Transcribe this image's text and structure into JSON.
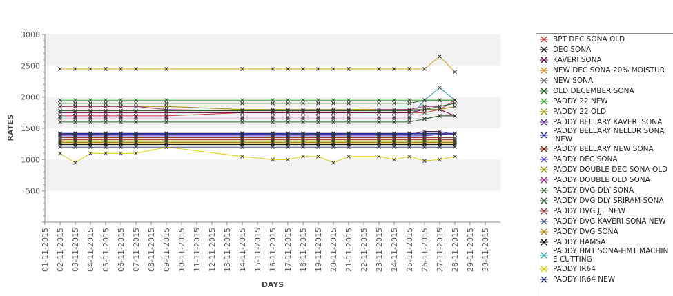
{
  "chart_data": {
    "type": "line",
    "title": "",
    "xlabel": "DAYS",
    "ylabel": "RATES",
    "ylim": [
      0,
      3000
    ],
    "y_ticks": [
      "500",
      "1000",
      "1500",
      "2000",
      "2500",
      "3000"
    ],
    "x_ticks": [
      "01-11-2015",
      "02-11-2015",
      "03-11-2015",
      "04-11-2015",
      "05-11-2015",
      "06-11-2015",
      "07-11-2015",
      "08-11-2015",
      "09-11-2015",
      "10-11-2015",
      "11-11-2015",
      "12-11-2015",
      "13-11-2015",
      "14-11-2015",
      "15-11-2015",
      "16-11-2015",
      "17-11-2015",
      "18-11-2015",
      "19-11-2015",
      "20-11-2015",
      "21-11-2015",
      "22-11-2015",
      "23-11-2015",
      "24-11-2015",
      "25-11-2015",
      "26-11-2015",
      "27-11-2015",
      "28-11-2015",
      "29-11-2015",
      "30-11-2015"
    ],
    "x_days": [
      2,
      3,
      4,
      5,
      6,
      7,
      9,
      14,
      16,
      17,
      18,
      19,
      20,
      21,
      23,
      24,
      25,
      26,
      27,
      28
    ],
    "grid": "alternating horizontal bands",
    "legend_position": "right",
    "series": [
      {
        "name": "BPT DEC SONA OLD",
        "color": "#cc3333",
        "values": [
          1700,
          1700,
          1700,
          1700,
          1700,
          1700,
          1700,
          1750,
          1750,
          1750,
          1750,
          1750,
          1750,
          1750,
          1750,
          1750,
          1750,
          1750,
          1800,
          1950
        ]
      },
      {
        "name": "DEC SONA",
        "color": "#111111",
        "values": [
          1650,
          1650,
          1650,
          1650,
          1650,
          1650,
          1650,
          1650,
          1650,
          1650,
          1650,
          1650,
          1650,
          1650,
          1650,
          1650,
          1650,
          1650,
          1700,
          1700
        ]
      },
      {
        "name": "KAVERI SONA",
        "color": "#660044",
        "values": [
          1750,
          1750,
          1750,
          1750,
          1750,
          1750,
          1750,
          1750,
          1750,
          1750,
          1750,
          1750,
          1750,
          1750,
          1750,
          1750,
          1750,
          1800,
          1800,
          1700
        ]
      },
      {
        "name": "NEW DEC SONA 20% MOISTUR",
        "color": "#cc7700",
        "values": [
          1300,
          1300,
          1300,
          1300,
          1300,
          1300,
          1300,
          1300,
          1300,
          1300,
          1300,
          1300,
          1300,
          1300,
          1300,
          1300,
          1300,
          1300,
          1300,
          1300
        ]
      },
      {
        "name": "NEW SONA",
        "color": "#666666",
        "values": [
          1250,
          1250,
          1250,
          1250,
          1250,
          1250,
          1250,
          1250,
          1250,
          1250,
          1250,
          1250,
          1250,
          1250,
          1250,
          1250,
          1250,
          1250,
          1250,
          1250
        ]
      },
      {
        "name": "OLD DECEMBER SONA",
        "color": "#226622",
        "values": [
          1900,
          1900,
          1900,
          1900,
          1900,
          1900,
          1900,
          1900,
          1900,
          1900,
          1900,
          1900,
          1900,
          1900,
          1900,
          1900,
          1900,
          1950,
          1950,
          1950
        ]
      },
      {
        "name": "PADDY 22 NEW",
        "color": "#33aa33",
        "values": [
          1950,
          1950,
          1950,
          1950,
          1950,
          1950,
          1950,
          1950,
          1950,
          1950,
          1950,
          1950,
          1950,
          1950,
          1950,
          1950,
          1950,
          1950,
          1950,
          1950
        ]
      },
      {
        "name": "PADDY 22 OLD",
        "color": "#998800",
        "values": [
          1850,
          1850,
          1850,
          1850,
          1850,
          1850,
          1850,
          1800,
          1800,
          1800,
          1800,
          1800,
          1800,
          1800,
          1800,
          1800,
          1800,
          1800,
          1800,
          1850
        ]
      },
      {
        "name": "PADDY BELLARY KAVERI SONA",
        "color": "#552288",
        "values": [
          1400,
          1400,
          1400,
          1400,
          1400,
          1400,
          1400,
          1400,
          1400,
          1400,
          1400,
          1400,
          1400,
          1400,
          1400,
          1400,
          1400,
          1450,
          1450,
          1400
        ]
      },
      {
        "name": "PADDY BELLARY NELLUR SONA\n NEW",
        "color": "#222299",
        "values": [
          1420,
          1420,
          1420,
          1420,
          1420,
          1420,
          1420,
          1420,
          1420,
          1420,
          1420,
          1420,
          1420,
          1420,
          1420,
          1420,
          1420,
          1420,
          1420,
          1420
        ]
      },
      {
        "name": "PADDY BELLARY NEW SONA",
        "color": "#882200",
        "values": [
          1350,
          1350,
          1350,
          1350,
          1350,
          1350,
          1350,
          1350,
          1350,
          1350,
          1350,
          1350,
          1350,
          1350,
          1350,
          1350,
          1350,
          1350,
          1350,
          1350
        ]
      },
      {
        "name": "PADDY DEC SONA",
        "color": "#5533cc",
        "values": [
          1380,
          1380,
          1380,
          1380,
          1380,
          1380,
          1380,
          1380,
          1380,
          1380,
          1380,
          1380,
          1380,
          1380,
          1380,
          1380,
          1380,
          1380,
          1400,
          1400
        ]
      },
      {
        "name": "PADDY DOUBLE DEC SONA OLD",
        "color": "#888800",
        "values": [
          1280,
          1280,
          1280,
          1280,
          1280,
          1280,
          1280,
          1280,
          1280,
          1280,
          1280,
          1280,
          1280,
          1280,
          1280,
          1280,
          1280,
          1280,
          1280,
          1280
        ]
      },
      {
        "name": "PADDY DOUBLE OLD SONA",
        "color": "#aa2288",
        "values": [
          1850,
          1850,
          1850,
          1850,
          1850,
          1850,
          1800,
          1780,
          1780,
          1780,
          1780,
          1780,
          1780,
          1780,
          1800,
          1800,
          1800,
          1850,
          1850,
          1900
        ]
      },
      {
        "name": "PADDY DVG DLY SONA",
        "color": "#336633",
        "values": [
          1600,
          1600,
          1600,
          1600,
          1600,
          1600,
          1600,
          1600,
          1600,
          1600,
          1600,
          1600,
          1600,
          1600,
          1600,
          1600,
          1600,
          1650,
          1700,
          1700
        ]
      },
      {
        "name": "PADDY DVG DLY SRIRAM SONA",
        "color": "#225522",
        "values": [
          1780,
          1780,
          1780,
          1780,
          1780,
          1780,
          1780,
          1780,
          1780,
          1780,
          1780,
          1780,
          1780,
          1780,
          1780,
          1780,
          1780,
          1800,
          1850,
          1900
        ]
      },
      {
        "name": "PADDY DVG JJL NEW",
        "color": "#993333",
        "values": [
          1320,
          1320,
          1320,
          1320,
          1320,
          1320,
          1320,
          1320,
          1320,
          1320,
          1320,
          1320,
          1320,
          1320,
          1320,
          1320,
          1320,
          1320,
          1320,
          1320
        ]
      },
      {
        "name": "PADDY DVG KAVERI SONA NEW",
        "color": "#445588",
        "values": [
          1200,
          1200,
          1200,
          1200,
          1200,
          1200,
          1200,
          1200,
          1200,
          1200,
          1200,
          1200,
          1200,
          1200,
          1200,
          1200,
          1200,
          1200,
          1200,
          1200
        ]
      },
      {
        "name": "PADDY DVG SONA",
        "color": "#bb8800",
        "values": [
          1270,
          1270,
          1270,
          1270,
          1270,
          1270,
          1270,
          1270,
          1270,
          1270,
          1270,
          1270,
          1270,
          1270,
          1270,
          1270,
          1270,
          1270,
          1270,
          1270
        ]
      },
      {
        "name": "PADDY HAMSA",
        "color": "#000000",
        "values": [
          1240,
          1240,
          1240,
          1240,
          1240,
          1240,
          1240,
          1240,
          1240,
          1240,
          1240,
          1240,
          1240,
          1240,
          1240,
          1240,
          1240,
          1240,
          1240,
          1240
        ]
      },
      {
        "name": "PADDY HMT SONA-HMT MACHIN\nE CUTTING",
        "color": "#2299aa",
        "values": [
          1680,
          1680,
          1680,
          1680,
          1680,
          1680,
          1680,
          1680,
          1680,
          1680,
          1680,
          1680,
          1680,
          1680,
          1680,
          1680,
          1680,
          1950,
          2150,
          1950
        ]
      },
      {
        "name": "PADDY IR64",
        "color": "#ddcc00",
        "values": [
          1100,
          950,
          1100,
          1100,
          1100,
          1100,
          1200,
          1050,
          1000,
          1000,
          1050,
          1050,
          950,
          1050,
          1050,
          1000,
          1050,
          980,
          1000,
          1050
        ]
      },
      {
        "name": "PADDY IR64 NEW",
        "color": "#222277",
        "values": [
          1410,
          1410,
          1410,
          1410,
          1410,
          1410,
          1410,
          1410,
          1410,
          1410,
          1410,
          1410,
          1410,
          1410,
          1410,
          1410,
          1410,
          1410,
          1410,
          1400
        ]
      },
      {
        "name": "",
        "color": "#d4a017",
        "values": [
          2450,
          2450,
          2450,
          2450,
          2450,
          2450,
          2450,
          2450,
          2450,
          2450,
          2450,
          2450,
          2450,
          2450,
          2450,
          2450,
          2450,
          2450,
          2650,
          2400
        ]
      }
    ]
  }
}
